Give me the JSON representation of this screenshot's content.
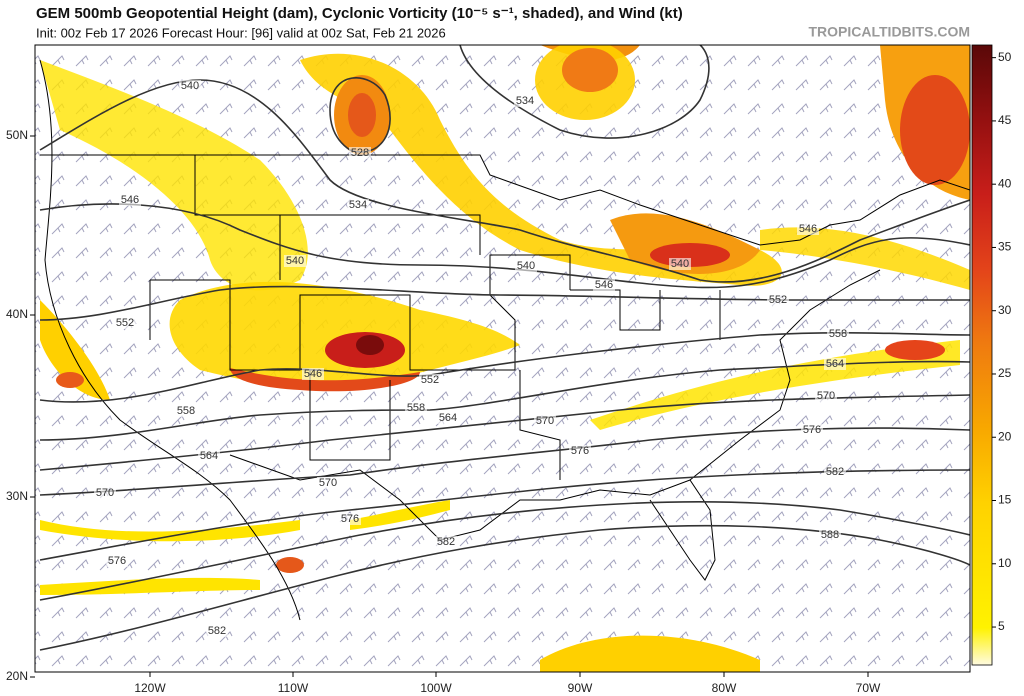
{
  "header": {
    "title": "GEM 500mb Geopotential Height (dam), Cyclonic Vorticity (10⁻⁵ s⁻¹, shaded), and Wind (kt)",
    "subtitle": "Init: 00z Feb 17 2026   Forecast Hour: [96]   valid at 00z Sat, Feb 21 2026",
    "site": "TROPICALTIDBITS.COM"
  },
  "map": {
    "lat_labels": [
      "50N",
      "40N",
      "30N",
      "20N"
    ],
    "lon_labels": [
      "120W",
      "110W",
      "100W",
      "90W",
      "80W",
      "70W"
    ],
    "contour_labels": [
      "540",
      "534",
      "528",
      "546",
      "534",
      "540",
      "540",
      "540",
      "546",
      "546",
      "552",
      "552",
      "558",
      "546",
      "552",
      "558",
      "564",
      "564",
      "558",
      "570",
      "570",
      "576",
      "576",
      "564",
      "570",
      "582",
      "570",
      "576",
      "582",
      "588",
      "576",
      "582"
    ]
  },
  "colorbar": {
    "range": [
      2,
      51
    ],
    "ticks": [
      5,
      10,
      15,
      20,
      25,
      30,
      35,
      40,
      45,
      50
    ]
  }
}
